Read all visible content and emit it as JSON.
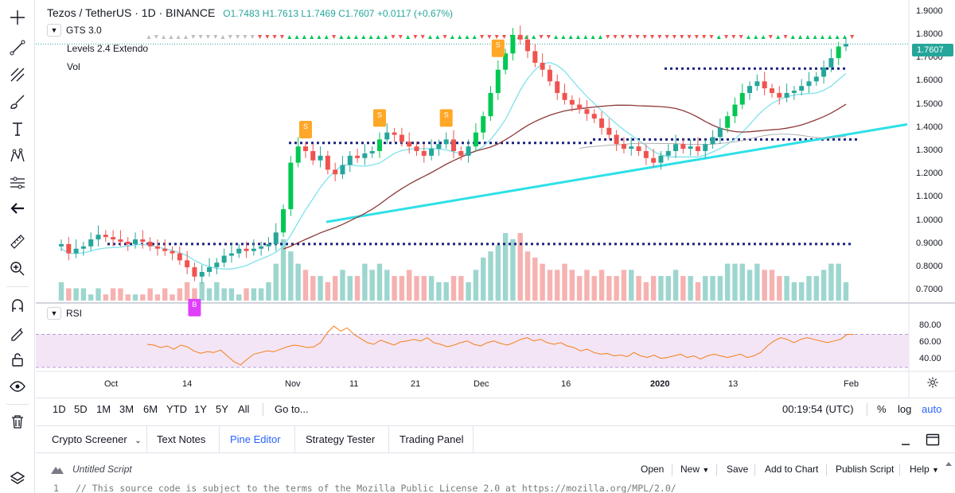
{
  "header": {
    "symbol": "Tezos / TetherUS · 1D · BINANCE",
    "open": "O1.7483",
    "high": "H1.7613",
    "low": "L1.7469",
    "close": "C1.7607",
    "change": "+0.0117 (+0.67%)"
  },
  "indicators": {
    "gts": "GTS 3.0",
    "levels": "Levels 2.4 Extendo",
    "vol": "Vol",
    "rsi": "RSI"
  },
  "price_axis": [
    "1.9000",
    "1.8000",
    "1.7000",
    "1.6000",
    "1.5000",
    "1.4000",
    "1.3000",
    "1.2000",
    "1.1000",
    "1.0000",
    "0.9000",
    "0.8000",
    "0.7000"
  ],
  "current_price": "1.7607",
  "rsi_axis": [
    "80.00",
    "60.00",
    "40.00"
  ],
  "time_axis": [
    "Oct",
    "14",
    "Nov",
    "11",
    "21",
    "Dec",
    "16",
    "2020",
    "13",
    "Feb"
  ],
  "markers": {
    "buy": "B",
    "sell": "S"
  },
  "range_bar": {
    "ranges": [
      "1D",
      "5D",
      "1M",
      "3M",
      "6M",
      "YTD",
      "1Y",
      "5Y",
      "All"
    ],
    "goto": "Go to...",
    "clock": "00:19:54 (UTC)",
    "percent": "%",
    "log": "log",
    "auto": "auto"
  },
  "tabs": [
    "Crypto Screener",
    "Text Notes",
    "Pine Editor",
    "Strategy Tester",
    "Trading Panel"
  ],
  "active_tab": "Pine Editor",
  "script_bar": {
    "title": "Untitled Script",
    "open": "Open",
    "new": "New",
    "save": "Save",
    "add": "Add to Chart",
    "publish": "Publish Script",
    "help": "Help"
  },
  "code": {
    "line_no": "1",
    "text": "// This source code is subject to the terms of the Mozilla Public License 2.0 at https://mozilla.org/MPL/2.0/"
  },
  "colors": {
    "up": "#26a69a",
    "down": "#ef5350",
    "bright_up": "#00c853",
    "accent": "#2962ff",
    "trendline": "#2fe0e8",
    "level_dots": "#1a237e",
    "rsi_line": "#f57f17",
    "rsi_band": "#f3e5f5"
  },
  "chart_data": {
    "type": "candlestick",
    "pair": "XTZ/USDT",
    "y_range": [
      0.65,
      1.95
    ],
    "rsi_range": [
      30,
      85
    ],
    "rsi_band": [
      30,
      70
    ],
    "levels": [
      1.655,
      1.335,
      1.35,
      0.9
    ],
    "closes": [
      0.9,
      0.86,
      0.88,
      0.89,
      0.92,
      0.94,
      0.93,
      0.92,
      0.91,
      0.9,
      0.92,
      0.91,
      0.89,
      0.88,
      0.87,
      0.86,
      0.83,
      0.8,
      0.76,
      0.78,
      0.8,
      0.82,
      0.85,
      0.86,
      0.88,
      0.87,
      0.88,
      0.89,
      0.9,
      0.95,
      1.05,
      1.25,
      1.32,
      1.3,
      1.26,
      1.28,
      1.22,
      1.2,
      1.24,
      1.28,
      1.27,
      1.29,
      1.3,
      1.35,
      1.38,
      1.37,
      1.34,
      1.32,
      1.3,
      1.28,
      1.31,
      1.33,
      1.35,
      1.3,
      1.28,
      1.32,
      1.38,
      1.45,
      1.55,
      1.65,
      1.72,
      1.8,
      1.78,
      1.73,
      1.68,
      1.65,
      1.6,
      1.55,
      1.52,
      1.5,
      1.48,
      1.46,
      1.44,
      1.4,
      1.37,
      1.33,
      1.31,
      1.32,
      1.3,
      1.27,
      1.25,
      1.28,
      1.3,
      1.33,
      1.31,
      1.32,
      1.3,
      1.33,
      1.36,
      1.4,
      1.45,
      1.5,
      1.55,
      1.58,
      1.6,
      1.57,
      1.55,
      1.53,
      1.55,
      1.56,
      1.58,
      1.6,
      1.62,
      1.66,
      1.7,
      1.75,
      1.7607
    ],
    "volumes": [
      3,
      2,
      2,
      2,
      1,
      2,
      1,
      2,
      2,
      1,
      1,
      1,
      2,
      1,
      2,
      1,
      2,
      3,
      2,
      3,
      2,
      3,
      2,
      2,
      1,
      2,
      2,
      2,
      3,
      6,
      10,
      8,
      6,
      5,
      4,
      4,
      3,
      4,
      5,
      4,
      4,
      6,
      5,
      6,
      5,
      4,
      4,
      5,
      4,
      4,
      4,
      3,
      3,
      4,
      4,
      3,
      5,
      7,
      8,
      9,
      11,
      10,
      11,
      8,
      7,
      6,
      5,
      5,
      6,
      5,
      4,
      5,
      4,
      5,
      4,
      4,
      5,
      5,
      4,
      3,
      4,
      4,
      4,
      5,
      4,
      4,
      3,
      4,
      4,
      4,
      6,
      6,
      6,
      5,
      6,
      5,
      5,
      4,
      4,
      3,
      3,
      4,
      4,
      5,
      6,
      6,
      3
    ],
    "rsi": [
      58,
      57,
      54,
      56,
      52,
      57,
      55,
      50,
      47,
      49,
      48,
      51,
      44,
      37,
      33,
      40,
      46,
      48,
      50,
      49,
      52,
      55,
      57,
      56,
      54,
      55,
      60,
      72,
      80,
      74,
      78,
      70,
      65,
      60,
      58,
      63,
      60,
      57,
      61,
      62,
      64,
      62,
      66,
      60,
      58,
      55,
      57,
      60,
      62,
      58,
      56,
      60,
      62,
      59,
      57,
      60,
      64,
      66,
      62,
      64,
      60,
      58,
      60,
      56,
      54,
      50,
      52,
      48,
      46,
      47,
      44,
      45,
      43,
      48,
      44,
      42,
      45,
      41,
      42,
      44,
      46,
      42,
      44,
      40,
      44,
      46,
      44,
      42,
      44,
      46,
      42,
      44,
      48,
      56,
      62,
      66,
      64,
      60,
      64,
      66,
      64,
      62,
      60,
      62,
      64,
      70,
      70
    ]
  }
}
